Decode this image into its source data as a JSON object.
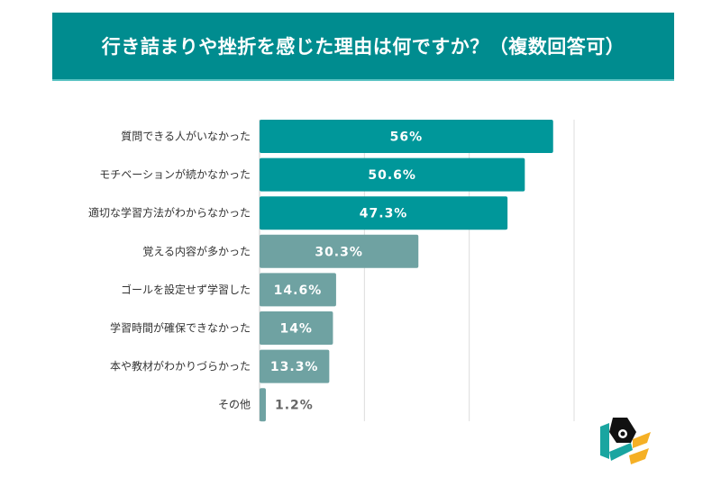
{
  "chart_data": {
    "type": "bar",
    "orientation": "horizontal",
    "title": "行き詰まりや挫折を感じた理由は何ですか？（複数回答可）",
    "categories": [
      "質問できる人がいなかった",
      "モチベーションが続かなかった",
      "適切な学習方法がわからなかった",
      "覚える内容が多かった",
      "ゴールを設定せず学習した",
      "学習時間が確保できなかった",
      "本や教材がわかりづらかった",
      "その他"
    ],
    "values": [
      56,
      50.6,
      47.3,
      30.3,
      14.6,
      14,
      13.3,
      1.2
    ],
    "labels": [
      "56%",
      "50.6%",
      "47.3%",
      "30.3%",
      "14.6%",
      "14%",
      "13.3%",
      "1.2%"
    ],
    "unit": "%",
    "xlim": [
      0,
      60
    ],
    "grid": true,
    "colors": {
      "highlight": "#00979a",
      "normal": "#6fa2a2",
      "title_band": "#008c8f"
    },
    "highlight_count": 3
  }
}
